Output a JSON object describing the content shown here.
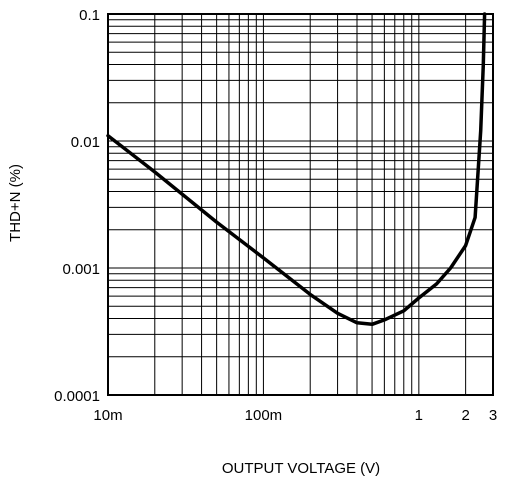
{
  "chart_data": {
    "type": "line",
    "title": "",
    "xlabel": "OUTPUT VOLTAGE (V)",
    "ylabel": "THD+N (%)",
    "x_scale": "log",
    "y_scale": "log",
    "xlim": [
      0.01,
      3
    ],
    "ylim": [
      0.0001,
      0.1
    ],
    "grid": true,
    "x_ticks": [
      {
        "value": 0.01,
        "label": "10m"
      },
      {
        "value": 0.1,
        "label": "100m"
      },
      {
        "value": 1,
        "label": "1"
      },
      {
        "value": 2,
        "label": "2"
      },
      {
        "value": 3,
        "label": "3"
      }
    ],
    "y_ticks": [
      {
        "value": 0.1,
        "label": "0.1"
      },
      {
        "value": 0.01,
        "label": "0.01"
      },
      {
        "value": 0.001,
        "label": "0.001"
      },
      {
        "value": 0.0001,
        "label": "0.0001"
      }
    ],
    "series": [
      {
        "color": "#000000",
        "x": [
          0.01,
          0.02,
          0.05,
          0.1,
          0.2,
          0.3,
          0.4,
          0.5,
          0.6,
          0.8,
          1.0,
          1.3,
          1.6,
          2.0,
          2.3,
          2.5,
          2.6,
          2.65
        ],
        "y": [
          0.011,
          0.0057,
          0.0023,
          0.0012,
          0.00062,
          0.00044,
          0.00037,
          0.00036,
          0.00039,
          0.00046,
          0.00058,
          0.00075,
          0.001,
          0.0015,
          0.0025,
          0.012,
          0.04,
          0.1
        ]
      }
    ]
  }
}
